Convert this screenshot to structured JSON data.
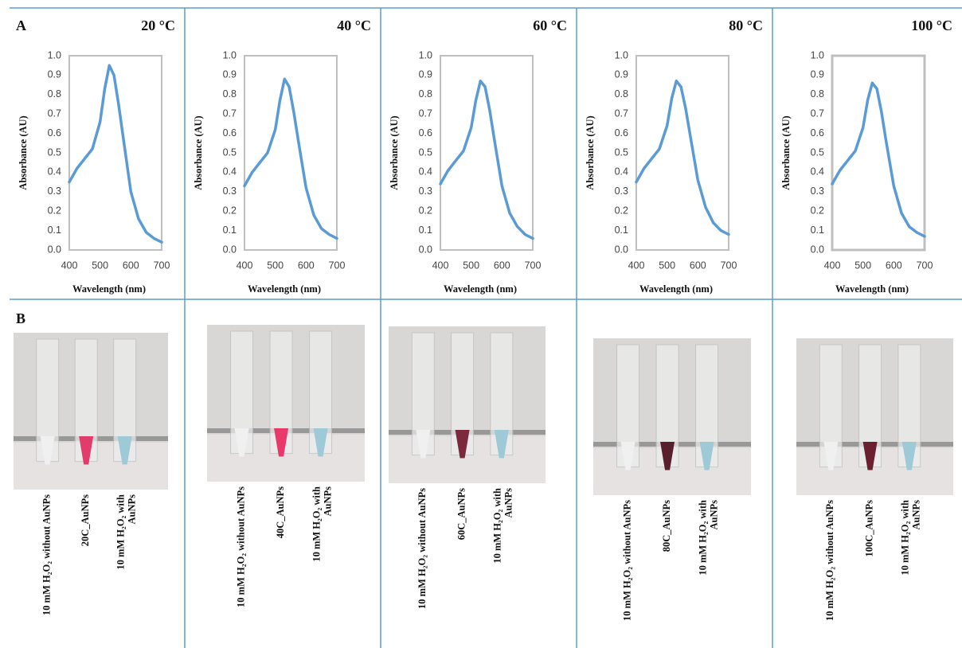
{
  "panels": [
    "A",
    "B"
  ],
  "chart_data": [
    {
      "type": "line",
      "title": "20 °C",
      "xlabel": "Wavelength (nm)",
      "ylabel": "Absorbance (AU)",
      "x": [
        400,
        425,
        450,
        475,
        500,
        515,
        530,
        545,
        560,
        575,
        600,
        625,
        650,
        675,
        700
      ],
      "values": [
        0.35,
        0.42,
        0.47,
        0.52,
        0.66,
        0.83,
        0.95,
        0.9,
        0.75,
        0.58,
        0.3,
        0.16,
        0.09,
        0.06,
        0.04
      ],
      "color": "#5b9bd5",
      "xlim": [
        400,
        700
      ],
      "xticks": [
        400,
        500,
        600,
        700
      ],
      "ylim": [
        0,
        1
      ],
      "yticks": [
        {
          "value": 0,
          "label": "0.0"
        },
        0.1,
        0.2,
        0.3,
        0.4,
        0.5,
        0.6,
        0.7,
        0.8,
        0.9,
        {
          "value": 1,
          "label": "1.0"
        }
      ]
    },
    {
      "type": "line",
      "title": "40 °C",
      "xlabel": "Wavelength (nm)",
      "ylabel": "Absorbance (AU)",
      "x": [
        400,
        425,
        450,
        475,
        500,
        515,
        530,
        545,
        560,
        575,
        600,
        625,
        650,
        675,
        700
      ],
      "values": [
        0.33,
        0.4,
        0.45,
        0.5,
        0.62,
        0.77,
        0.88,
        0.84,
        0.71,
        0.56,
        0.32,
        0.18,
        0.11,
        0.08,
        0.06
      ],
      "color": "#5b9bd5",
      "xlim": [
        400,
        700
      ],
      "xticks": [
        400,
        500,
        600,
        700
      ],
      "ylim": [
        0,
        1
      ],
      "yticks": [
        {
          "value": 0,
          "label": "0.0"
        },
        0.1,
        0.2,
        0.3,
        0.4,
        0.5,
        0.6,
        0.7,
        0.8,
        0.9,
        {
          "value": 1,
          "label": "1.0"
        }
      ]
    },
    {
      "type": "line",
      "title": "60 °C",
      "xlabel": "Wavelength (nm)",
      "ylabel": "Absorbance (AU)",
      "x": [
        400,
        425,
        450,
        475,
        500,
        515,
        530,
        545,
        560,
        575,
        600,
        625,
        650,
        675,
        700
      ],
      "values": [
        0.34,
        0.41,
        0.46,
        0.51,
        0.63,
        0.77,
        0.87,
        0.84,
        0.72,
        0.57,
        0.33,
        0.19,
        0.12,
        0.08,
        0.06
      ],
      "color": "#5b9bd5",
      "xlim": [
        400,
        700
      ],
      "xticks": [
        400,
        500,
        600,
        700
      ],
      "ylim": [
        0,
        1
      ],
      "yticks": [
        {
          "value": 0,
          "label": "0.0"
        },
        0.1,
        0.2,
        0.3,
        0.4,
        0.5,
        0.6,
        0.7,
        0.8,
        0.9,
        {
          "value": 1,
          "label": "1.0"
        }
      ]
    },
    {
      "type": "line",
      "title": "80 °C",
      "xlabel": "Wavelength (nm)",
      "ylabel": "Absorbance (AU)",
      "x": [
        400,
        425,
        450,
        475,
        500,
        515,
        530,
        545,
        560,
        575,
        600,
        625,
        650,
        675,
        700
      ],
      "values": [
        0.35,
        0.42,
        0.47,
        0.52,
        0.64,
        0.78,
        0.87,
        0.84,
        0.73,
        0.59,
        0.36,
        0.22,
        0.14,
        0.1,
        0.08
      ],
      "color": "#5b9bd5",
      "xlim": [
        400,
        700
      ],
      "xticks": [
        400,
        500,
        600,
        700
      ],
      "ylim": [
        0,
        1
      ],
      "yticks": [
        {
          "value": 0,
          "label": "0.0"
        },
        0.1,
        0.2,
        0.3,
        0.4,
        0.5,
        0.6,
        0.7,
        0.8,
        0.9,
        {
          "value": 1,
          "label": "1.0"
        }
      ]
    },
    {
      "type": "line",
      "title": "100 °C",
      "xlabel": "Wavelength (nm)",
      "ylabel": "Absorbance (AU)",
      "x": [
        400,
        425,
        450,
        475,
        500,
        515,
        530,
        545,
        560,
        575,
        600,
        625,
        650,
        675,
        700
      ],
      "values": [
        0.34,
        0.41,
        0.46,
        0.51,
        0.63,
        0.77,
        0.86,
        0.83,
        0.71,
        0.56,
        0.33,
        0.19,
        0.12,
        0.09,
        0.07
      ],
      "color": "#5b9bd5",
      "xlim": [
        400,
        700
      ],
      "xticks": [
        400,
        500,
        600,
        700
      ],
      "ylim": [
        0,
        1
      ],
      "yticks": [
        {
          "value": 0,
          "label": "0.0"
        },
        0.1,
        0.2,
        0.3,
        0.4,
        0.5,
        0.6,
        0.7,
        0.8,
        0.9,
        {
          "value": 1,
          "label": "1.0"
        }
      ]
    }
  ],
  "photos": [
    {
      "labels": [
        [
          "10 mM H₂O₂ without AuNPs"
        ],
        [
          "20C_AuNPs"
        ],
        [
          "10 mM H₂O₂ with",
          "AuNPs"
        ]
      ]
    },
    {
      "labels": [
        [
          "10 mM H₂O₂ without AuNPs"
        ],
        [
          "40C_AuNPs"
        ],
        [
          "10 mM H₂O₂ with",
          "AuNPs"
        ]
      ]
    },
    {
      "labels": [
        [
          "10 mM H₂O₂ without AuNPs"
        ],
        [
          "60C_AuNPs"
        ],
        [
          "10 mM H₂O₂ with",
          "AuNPs"
        ]
      ]
    },
    {
      "labels": [
        [
          "10 mM H₂O₂ without AuNPs"
        ],
        [
          "80C_AuNPs"
        ],
        [
          "10 mM H₂O₂ with",
          "AuNPs"
        ]
      ]
    },
    {
      "labels": [
        [
          "10 mM H₂O₂ without AuNPs"
        ],
        [
          "100C_AuNPs"
        ],
        [
          "10 mM H₂O₂ with",
          "AuNPs"
        ]
      ]
    }
  ]
}
